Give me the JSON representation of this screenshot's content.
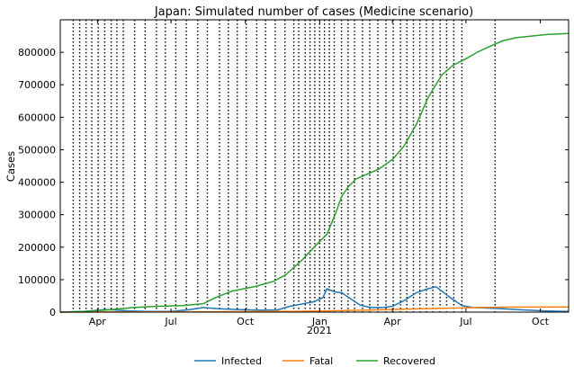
{
  "chart_data": {
    "type": "line",
    "title": "Japan: Simulated number of cases (Medicine scenario)",
    "xlabel": "",
    "ylabel": "Cases",
    "year_label": "2021",
    "ylim": [
      0,
      900000
    ],
    "xlim": [
      "2020-02-15",
      "2021-11-05"
    ],
    "y_ticks": [
      0,
      100000,
      200000,
      300000,
      400000,
      500000,
      600000,
      700000,
      800000
    ],
    "y_tick_labels": [
      "0",
      "100000",
      "200000",
      "300000",
      "400000",
      "500000",
      "600000",
      "700000",
      "800000"
    ],
    "x_ticks": [
      "2020-04-01",
      "2020-07-01",
      "2020-10-01",
      "2021-01-01",
      "2021-04-01",
      "2021-07-01",
      "2021-10-01"
    ],
    "x_tick_labels": [
      "Apr",
      "Jul",
      "Oct",
      "Jan",
      "Apr",
      "Jul",
      "Oct"
    ],
    "grid": false,
    "legend_position": "bottom-center",
    "change_dates": [
      "2020-03-02",
      "2020-03-10",
      "2020-03-18",
      "2020-03-25",
      "2020-04-02",
      "2020-04-10",
      "2020-04-18",
      "2020-04-25",
      "2020-05-03",
      "2020-05-17",
      "2020-05-30",
      "2020-06-13",
      "2020-06-24",
      "2020-07-07",
      "2020-07-20",
      "2020-08-03",
      "2020-08-15",
      "2020-08-30",
      "2020-09-10",
      "2020-09-21",
      "2020-10-02",
      "2020-10-15",
      "2020-10-26",
      "2020-11-07",
      "2020-11-19",
      "2020-11-30",
      "2020-12-06",
      "2020-12-14",
      "2020-12-20",
      "2020-12-26",
      "2021-01-01",
      "2021-01-07",
      "2021-01-13",
      "2021-01-19",
      "2021-01-28",
      "2021-02-05",
      "2021-02-13",
      "2021-02-23",
      "2021-03-04",
      "2021-03-14",
      "2021-03-24",
      "2021-04-02",
      "2021-04-11",
      "2021-04-19",
      "2021-04-27",
      "2021-05-05",
      "2021-05-13",
      "2021-05-21",
      "2021-05-30",
      "2021-06-07",
      "2021-06-16",
      "2021-06-26",
      "2021-08-06"
    ],
    "series": [
      {
        "name": "Infected",
        "color": "#1f77b4",
        "x": [
          "2020-02-15",
          "2020-03-15",
          "2020-04-10",
          "2020-04-20",
          "2020-05-10",
          "2020-06-01",
          "2020-07-01",
          "2020-07-25",
          "2020-08-10",
          "2020-08-25",
          "2020-09-20",
          "2020-10-20",
          "2020-11-10",
          "2020-11-25",
          "2020-12-10",
          "2020-12-25",
          "2021-01-05",
          "2021-01-10",
          "2021-01-20",
          "2021-01-28",
          "2021-02-10",
          "2021-02-20",
          "2021-03-05",
          "2021-03-20",
          "2021-04-01",
          "2021-04-15",
          "2021-05-01",
          "2021-05-15",
          "2021-05-25",
          "2021-06-10",
          "2021-06-26",
          "2021-07-10",
          "2021-08-10",
          "2021-09-10",
          "2021-10-05",
          "2021-11-05"
        ],
        "y": [
          0,
          2000,
          8000,
          7000,
          4000,
          2000,
          2000,
          8000,
          14000,
          11000,
          8000,
          6000,
          7000,
          18000,
          25000,
          32000,
          45000,
          72000,
          62000,
          60000,
          38000,
          22000,
          14000,
          14000,
          18000,
          35000,
          60000,
          72000,
          78000,
          48000,
          20000,
          14000,
          11000,
          7000,
          4000,
          2000
        ]
      },
      {
        "name": "Fatal",
        "color": "#ff7f0e",
        "x": [
          "2020-02-15",
          "2020-04-01",
          "2020-06-01",
          "2020-08-01",
          "2020-10-01",
          "2020-12-01",
          "2021-01-15",
          "2021-03-01",
          "2021-05-01",
          "2021-06-15",
          "2021-07-15",
          "2021-09-01",
          "2021-11-05"
        ],
        "y": [
          0,
          200,
          900,
          1200,
          1600,
          2500,
          4200,
          6500,
          10000,
          12500,
          14000,
          15500,
          16000
        ]
      },
      {
        "name": "Recovered",
        "color": "#2ca02c",
        "x": [
          "2020-02-15",
          "2020-03-15",
          "2020-04-15",
          "2020-05-15",
          "2020-06-15",
          "2020-07-15",
          "2020-08-10",
          "2020-08-25",
          "2020-09-15",
          "2020-10-15",
          "2020-11-05",
          "2020-11-20",
          "2020-12-10",
          "2020-12-25",
          "2021-01-10",
          "2021-01-20",
          "2021-01-28",
          "2021-02-05",
          "2021-02-15",
          "2021-03-01",
          "2021-03-15",
          "2021-04-01",
          "2021-04-15",
          "2021-05-01",
          "2021-05-15",
          "2021-06-01",
          "2021-06-15",
          "2021-07-01",
          "2021-07-15",
          "2021-08-01",
          "2021-08-15",
          "2021-09-01",
          "2021-09-20",
          "2021-10-10",
          "2021-11-05"
        ],
        "y": [
          0,
          2000,
          7000,
          14000,
          18000,
          20000,
          26000,
          45000,
          65000,
          80000,
          95000,
          115000,
          160000,
          200000,
          240000,
          300000,
          355000,
          385000,
          410000,
          425000,
          440000,
          470000,
          510000,
          580000,
          660000,
          730000,
          760000,
          780000,
          800000,
          820000,
          835000,
          845000,
          850000,
          855000,
          858000
        ]
      }
    ]
  }
}
